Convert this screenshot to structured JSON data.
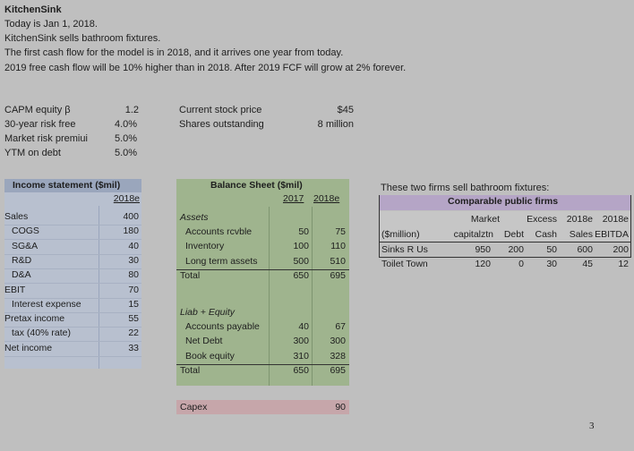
{
  "intro": {
    "title": "KitchenSink",
    "lines": [
      "Today is Jan 1, 2018.",
      "KitchenSink sells bathroom fixtures.",
      "The first cash flow for the model is in 2018, and it arrives one year from today.",
      "2019 free cash flow will be 10% higher than in 2018. After 2019 FCF will grow at 2% forever."
    ]
  },
  "params": [
    {
      "label": "CAPM equity β",
      "value": "1.2"
    },
    {
      "label": "30-year risk free",
      "value": "4.0%"
    },
    {
      "label": "Market risk premiui",
      "value": "5.0%"
    },
    {
      "label": "YTM on debt",
      "value": "5.0%"
    }
  ],
  "market": [
    {
      "label": "Current stock price",
      "value": "$45"
    },
    {
      "label": "Shares outstanding",
      "value": "8 million"
    }
  ],
  "income": {
    "title": "Income statement ($mil)",
    "year": "2018e",
    "rows": [
      {
        "label": "Sales",
        "value": "400",
        "indent": 0
      },
      {
        "label": "COGS",
        "value": "180",
        "indent": 1
      },
      {
        "label": "SG&A",
        "value": "40",
        "indent": 1
      },
      {
        "label": "R&D",
        "value": "30",
        "indent": 1
      },
      {
        "label": "D&A",
        "value": "80",
        "indent": 1
      },
      {
        "label": "EBIT",
        "value": "70",
        "indent": 0
      },
      {
        "label": "Interest expense",
        "value": "15",
        "indent": 1
      },
      {
        "label": "Pretax income",
        "value": "55",
        "indent": 0
      },
      {
        "label": "tax (40% rate)",
        "value": "22",
        "indent": 1
      },
      {
        "label": "Net income",
        "value": "33",
        "indent": 0
      }
    ]
  },
  "balance": {
    "title": "Balance Sheet ($mil)",
    "y1": "2017",
    "y2": "2018e",
    "assets_label": "Assets",
    "assets": [
      {
        "label": "Accounts rcvble",
        "a": "50",
        "b": "75"
      },
      {
        "label": "Inventory",
        "a": "100",
        "b": "110"
      },
      {
        "label": "Long term assets",
        "a": "500",
        "b": "510"
      }
    ],
    "assets_total": {
      "label": "Total",
      "a": "650",
      "b": "695"
    },
    "liab_label": "Liab + Equity",
    "liab": [
      {
        "label": "Accounts payable",
        "a": "40",
        "b": "67"
      },
      {
        "label": "Net Debt",
        "a": "300",
        "b": "300"
      },
      {
        "label": "Book equity",
        "a": "310",
        "b": "328"
      }
    ],
    "liab_total": {
      "label": "Total",
      "a": "650",
      "b": "695"
    },
    "capex": {
      "label": "Capex",
      "value": "90"
    }
  },
  "comparables": {
    "intro": "These two firms sell bathroom fixtures:",
    "title": "Comparable public firms",
    "head1": [
      "Market",
      "Excess",
      "2018e",
      "2018e"
    ],
    "head2": [
      "($million)",
      "capitalztn",
      "Debt",
      "Cash",
      "Sales",
      "EBITDA"
    ],
    "rows": [
      {
        "name": "Sinks R Us",
        "cap": "950",
        "debt": "200",
        "cash": "50",
        "sales": "600",
        "ebitda": "200"
      },
      {
        "name": "Toilet Town",
        "cap": "120",
        "debt": "0",
        "cash": "30",
        "sales": "45",
        "ebitda": "12"
      }
    ]
  },
  "page_number": "3"
}
